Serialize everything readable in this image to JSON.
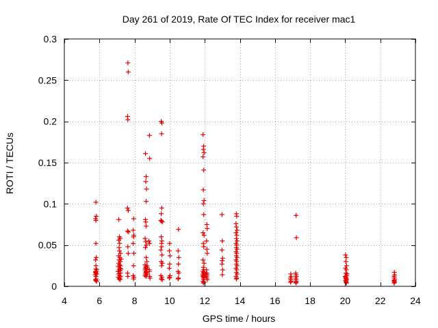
{
  "chart_data": {
    "type": "scatter",
    "title": "Day 261 of 2019, Rate Of TEC Index for receiver mac1",
    "xlabel": "GPS time / hours",
    "ylabel": "ROTI / TECUs",
    "xlim": [
      4,
      24
    ],
    "ylim": [
      0,
      0.3
    ],
    "xticks": [
      4,
      6,
      8,
      10,
      12,
      14,
      16,
      18,
      20,
      22,
      24
    ],
    "yticks": [
      0,
      0.05,
      0.1,
      0.15,
      0.2,
      0.25,
      0.3
    ],
    "xtick_labels": [
      "4",
      "6",
      "8",
      "10",
      "12",
      "14",
      "16",
      "18",
      "20",
      "22",
      "24"
    ],
    "ytick_labels": [
      "0",
      "0.05",
      "0.1",
      "0.15",
      "0.2",
      "0.25",
      "0.3"
    ],
    "grid": true,
    "marker": "+",
    "color": "#e00000",
    "series": [
      {
        "name": "ROTI",
        "points": [
          [
            5.8,
            0.102
          ],
          [
            5.82,
            0.085
          ],
          [
            5.78,
            0.082
          ],
          [
            5.8,
            0.08
          ],
          [
            5.8,
            0.052
          ],
          [
            5.82,
            0.035
          ],
          [
            5.78,
            0.032
          ],
          [
            5.8,
            0.025
          ],
          [
            5.8,
            0.021
          ],
          [
            5.82,
            0.018
          ],
          [
            5.78,
            0.017
          ],
          [
            5.8,
            0.016
          ],
          [
            5.84,
            0.015
          ],
          [
            5.76,
            0.014
          ],
          [
            5.8,
            0.012
          ],
          [
            5.82,
            0.009
          ],
          [
            5.78,
            0.008
          ],
          [
            5.8,
            0.007
          ],
          [
            5.84,
            0.006
          ],
          [
            5.78,
            0.018
          ],
          [
            5.84,
            0.02
          ],
          [
            7.1,
            0.081
          ],
          [
            7.14,
            0.06
          ],
          [
            7.18,
            0.058
          ],
          [
            7.1,
            0.056
          ],
          [
            7.15,
            0.052
          ],
          [
            7.12,
            0.047
          ],
          [
            7.14,
            0.043
          ],
          [
            7.2,
            0.04
          ],
          [
            7.1,
            0.037
          ],
          [
            7.16,
            0.035
          ],
          [
            7.12,
            0.032
          ],
          [
            7.18,
            0.03
          ],
          [
            7.1,
            0.028
          ],
          [
            7.14,
            0.026
          ],
          [
            7.2,
            0.025
          ],
          [
            7.08,
            0.024
          ],
          [
            7.16,
            0.022
          ],
          [
            7.12,
            0.02
          ],
          [
            7.18,
            0.019
          ],
          [
            7.06,
            0.018
          ],
          [
            7.2,
            0.016
          ],
          [
            7.1,
            0.015
          ],
          [
            7.14,
            0.013
          ],
          [
            7.2,
            0.012
          ],
          [
            7.08,
            0.011
          ],
          [
            7.16,
            0.01
          ],
          [
            7.12,
            0.009
          ],
          [
            7.18,
            0.008
          ],
          [
            7.22,
            0.021
          ],
          [
            7.24,
            0.033
          ],
          [
            7.62,
            0.271
          ],
          [
            7.64,
            0.26
          ],
          [
            7.6,
            0.206
          ],
          [
            7.62,
            0.202
          ],
          [
            7.6,
            0.095
          ],
          [
            7.64,
            0.092
          ],
          [
            7.6,
            0.067
          ],
          [
            7.66,
            0.066
          ],
          [
            7.62,
            0.048
          ],
          [
            7.64,
            0.04
          ],
          [
            7.6,
            0.016
          ],
          [
            7.62,
            0.012
          ],
          [
            7.95,
            0.082
          ],
          [
            7.92,
            0.068
          ],
          [
            7.96,
            0.062
          ],
          [
            7.94,
            0.06
          ],
          [
            7.92,
            0.052
          ],
          [
            7.96,
            0.04
          ],
          [
            7.94,
            0.025
          ],
          [
            7.92,
            0.013
          ],
          [
            7.96,
            0.011
          ],
          [
            7.94,
            0.009
          ],
          [
            8.62,
            0.161
          ],
          [
            8.66,
            0.133
          ],
          [
            8.64,
            0.127
          ],
          [
            8.68,
            0.118
          ],
          [
            8.66,
            0.103
          ],
          [
            8.62,
            0.081
          ],
          [
            8.64,
            0.078
          ],
          [
            8.66,
            0.073
          ],
          [
            8.6,
            0.058
          ],
          [
            8.64,
            0.054
          ],
          [
            8.68,
            0.05
          ],
          [
            8.62,
            0.047
          ],
          [
            8.66,
            0.035
          ],
          [
            8.7,
            0.03
          ],
          [
            8.6,
            0.026
          ],
          [
            8.64,
            0.024
          ],
          [
            8.68,
            0.023
          ],
          [
            8.62,
            0.022
          ],
          [
            8.7,
            0.021
          ],
          [
            8.6,
            0.02
          ],
          [
            8.66,
            0.018
          ],
          [
            8.64,
            0.017
          ],
          [
            8.68,
            0.016
          ],
          [
            8.62,
            0.015
          ],
          [
            8.7,
            0.014
          ],
          [
            8.6,
            0.013
          ],
          [
            8.66,
            0.012
          ],
          [
            8.72,
            0.025
          ],
          [
            8.85,
            0.183
          ],
          [
            8.86,
            0.155
          ],
          [
            8.82,
            0.055
          ],
          [
            8.86,
            0.052
          ],
          [
            8.84,
            0.018
          ],
          [
            8.86,
            0.012
          ],
          [
            8.88,
            0.01
          ],
          [
            8.84,
            0.02
          ],
          [
            9.52,
            0.2
          ],
          [
            9.56,
            0.198
          ],
          [
            9.54,
            0.185
          ],
          [
            9.55,
            0.095
          ],
          [
            9.52,
            0.088
          ],
          [
            9.5,
            0.08
          ],
          [
            9.54,
            0.079
          ],
          [
            9.58,
            0.078
          ],
          [
            9.52,
            0.06
          ],
          [
            9.56,
            0.055
          ],
          [
            9.54,
            0.052
          ],
          [
            9.5,
            0.044
          ],
          [
            9.56,
            0.038
          ],
          [
            9.52,
            0.03
          ],
          [
            9.58,
            0.028
          ],
          [
            9.54,
            0.025
          ],
          [
            9.5,
            0.013
          ],
          [
            9.56,
            0.011
          ],
          [
            9.52,
            0.009
          ],
          [
            9.58,
            0.008
          ],
          [
            9.54,
            0.048
          ],
          [
            10.0,
            0.052
          ],
          [
            9.98,
            0.043
          ],
          [
            10.02,
            0.037
          ],
          [
            10.0,
            0.027
          ],
          [
            9.98,
            0.022
          ],
          [
            10.02,
            0.013
          ],
          [
            10.0,
            0.011
          ],
          [
            9.98,
            0.01
          ],
          [
            10.5,
            0.069
          ],
          [
            10.48,
            0.043
          ],
          [
            10.52,
            0.035
          ],
          [
            10.5,
            0.027
          ],
          [
            10.48,
            0.018
          ],
          [
            10.52,
            0.016
          ],
          [
            10.5,
            0.01
          ],
          [
            10.48,
            0.009
          ],
          [
            11.9,
            0.184
          ],
          [
            11.94,
            0.17
          ],
          [
            11.92,
            0.166
          ],
          [
            11.96,
            0.162
          ],
          [
            11.9,
            0.157
          ],
          [
            11.94,
            0.141
          ],
          [
            11.92,
            0.117
          ],
          [
            11.96,
            0.104
          ],
          [
            11.92,
            0.1
          ],
          [
            11.94,
            0.087
          ],
          [
            11.9,
            0.065
          ],
          [
            11.96,
            0.062
          ],
          [
            11.92,
            0.052
          ],
          [
            11.94,
            0.048
          ],
          [
            11.9,
            0.032
          ],
          [
            11.96,
            0.028
          ],
          [
            11.92,
            0.023
          ],
          [
            11.94,
            0.02
          ],
          [
            11.9,
            0.018
          ],
          [
            11.96,
            0.017
          ],
          [
            11.92,
            0.016
          ],
          [
            11.98,
            0.015
          ],
          [
            11.88,
            0.014
          ],
          [
            11.94,
            0.013
          ],
          [
            11.9,
            0.012
          ],
          [
            11.96,
            0.011
          ],
          [
            11.92,
            0.01
          ],
          [
            11.94,
            0.008
          ],
          [
            11.9,
            0.006
          ],
          [
            11.96,
            0.005
          ],
          [
            11.92,
            0.004
          ],
          [
            12.12,
            0.075
          ],
          [
            12.14,
            0.07
          ],
          [
            12.1,
            0.055
          ],
          [
            12.12,
            0.045
          ],
          [
            12.14,
            0.04
          ],
          [
            12.1,
            0.02
          ],
          [
            12.12,
            0.016
          ],
          [
            12.14,
            0.014
          ],
          [
            12.1,
            0.012
          ],
          [
            12.12,
            0.01
          ],
          [
            12.14,
            0.008
          ],
          [
            12.98,
            0.087
          ],
          [
            13.0,
            0.055
          ],
          [
            12.98,
            0.044
          ],
          [
            13.02,
            0.034
          ],
          [
            13.0,
            0.031
          ],
          [
            12.98,
            0.027
          ],
          [
            13.02,
            0.02
          ],
          [
            13.0,
            0.014
          ],
          [
            13.8,
            0.088
          ],
          [
            13.82,
            0.085
          ],
          [
            13.78,
            0.076
          ],
          [
            13.8,
            0.072
          ],
          [
            13.84,
            0.068
          ],
          [
            13.78,
            0.065
          ],
          [
            13.82,
            0.062
          ],
          [
            13.8,
            0.058
          ],
          [
            13.84,
            0.055
          ],
          [
            13.78,
            0.052
          ],
          [
            13.82,
            0.05
          ],
          [
            13.8,
            0.047
          ],
          [
            13.84,
            0.045
          ],
          [
            13.78,
            0.042
          ],
          [
            13.82,
            0.04
          ],
          [
            13.8,
            0.037
          ],
          [
            13.84,
            0.035
          ],
          [
            13.78,
            0.032
          ],
          [
            13.82,
            0.03
          ],
          [
            13.8,
            0.027
          ],
          [
            13.84,
            0.025
          ],
          [
            13.78,
            0.022
          ],
          [
            13.82,
            0.02
          ],
          [
            13.8,
            0.017
          ],
          [
            13.84,
            0.015
          ],
          [
            13.78,
            0.012
          ],
          [
            13.82,
            0.01
          ],
          [
            13.8,
            0.009
          ],
          [
            16.9,
            0.015
          ],
          [
            16.92,
            0.012
          ],
          [
            16.88,
            0.01
          ],
          [
            16.9,
            0.008
          ],
          [
            16.92,
            0.006
          ],
          [
            16.88,
            0.005
          ],
          [
            17.2,
            0.086
          ],
          [
            17.22,
            0.059
          ],
          [
            17.18,
            0.016
          ],
          [
            17.2,
            0.014
          ],
          [
            17.22,
            0.012
          ],
          [
            17.18,
            0.01
          ],
          [
            17.2,
            0.008
          ],
          [
            17.22,
            0.006
          ],
          [
            17.18,
            0.005
          ],
          [
            17.2,
            0.004
          ],
          [
            20.02,
            0.038
          ],
          [
            20.06,
            0.035
          ],
          [
            20.04,
            0.03
          ],
          [
            20.08,
            0.025
          ],
          [
            20.02,
            0.022
          ],
          [
            20.06,
            0.02
          ],
          [
            20.04,
            0.016
          ],
          [
            20.08,
            0.013
          ],
          [
            20.02,
            0.011
          ],
          [
            20.06,
            0.01
          ],
          [
            20.04,
            0.009
          ],
          [
            20.08,
            0.008
          ],
          [
            20.02,
            0.007
          ],
          [
            20.06,
            0.006
          ],
          [
            20.04,
            0.005
          ],
          [
            20.08,
            0.004
          ],
          [
            20.0,
            0.012
          ],
          [
            20.1,
            0.015
          ],
          [
            22.8,
            0.017
          ],
          [
            22.82,
            0.014
          ],
          [
            22.78,
            0.012
          ],
          [
            22.8,
            0.01
          ],
          [
            22.82,
            0.008
          ],
          [
            22.78,
            0.007
          ],
          [
            22.8,
            0.006
          ],
          [
            22.82,
            0.005
          ],
          [
            22.78,
            0.004
          ]
        ]
      }
    ]
  }
}
